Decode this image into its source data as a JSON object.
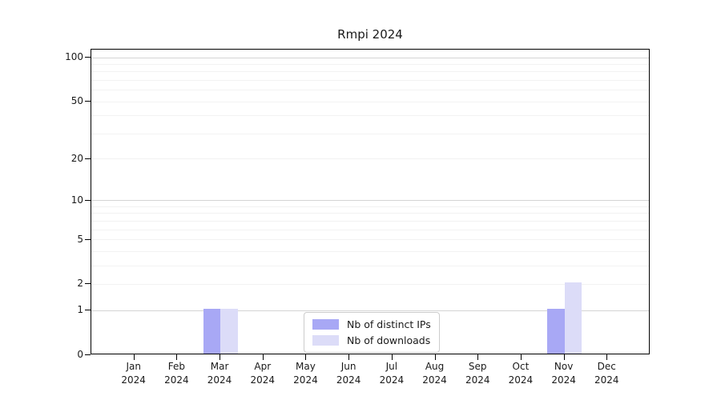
{
  "chart_data": {
    "type": "bar",
    "title": "Rmpi 2024",
    "categories": [
      "Jan 2024",
      "Feb 2024",
      "Mar 2024",
      "Apr 2024",
      "May 2024",
      "Jun 2024",
      "Jul 2024",
      "Aug 2024",
      "Sep 2024",
      "Oct 2024",
      "Nov 2024",
      "Dec 2024"
    ],
    "series": [
      {
        "name": "Nb of distinct IPs",
        "color": "#a8a8f5",
        "values": [
          0,
          0,
          1,
          0,
          0,
          0,
          0,
          0,
          0,
          0,
          1,
          0
        ]
      },
      {
        "name": "Nb of downloads",
        "color": "#dcdcf8",
        "values": [
          0,
          0,
          1,
          0,
          0,
          0,
          0,
          0,
          0,
          0,
          2,
          0
        ]
      }
    ],
    "xlabel": "",
    "ylabel": "",
    "yscale": "log1p",
    "ylim": [
      0,
      113
    ],
    "ytick_labels": [
      0,
      1,
      2,
      5,
      10,
      20,
      50,
      100
    ],
    "grid_minor_values": [
      2,
      3,
      4,
      5,
      6,
      7,
      8,
      9,
      20,
      30,
      40,
      50,
      60,
      70,
      80,
      90
    ],
    "grid_major_values": [
      1,
      10,
      100
    ],
    "grid": "horizontal",
    "legend_position": "lower center inside",
    "colors": {
      "grid_minor": "#f2f2f2",
      "grid_major": "#d4d4d4",
      "axis": "#000000",
      "text": "#1a1a1a",
      "legend_border": "#cccccc",
      "background": "#ffffff"
    }
  }
}
